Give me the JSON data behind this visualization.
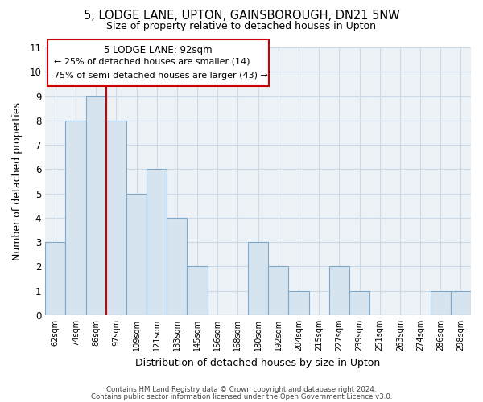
{
  "title_line1": "5, LODGE LANE, UPTON, GAINSBOROUGH, DN21 5NW",
  "title_line2": "Size of property relative to detached houses in Upton",
  "xlabel": "Distribution of detached houses by size in Upton",
  "ylabel": "Number of detached properties",
  "bar_color": "#d6e4f0",
  "bar_edge_color": "#7fa8c9",
  "vline_color": "#cc0000",
  "categories": [
    "62sqm",
    "74sqm",
    "86sqm",
    "97sqm",
    "109sqm",
    "121sqm",
    "133sqm",
    "145sqm",
    "156sqm",
    "168sqm",
    "180sqm",
    "192sqm",
    "204sqm",
    "215sqm",
    "227sqm",
    "239sqm",
    "251sqm",
    "263sqm",
    "274sqm",
    "286sqm",
    "298sqm"
  ],
  "values": [
    3,
    8,
    9,
    8,
    5,
    6,
    4,
    2,
    0,
    0,
    3,
    2,
    1,
    0,
    2,
    1,
    0,
    0,
    0,
    1,
    1
  ],
  "ylim": [
    0,
    11
  ],
  "yticks": [
    0,
    1,
    2,
    3,
    4,
    5,
    6,
    7,
    8,
    9,
    10,
    11
  ],
  "annotation_title": "5 LODGE LANE: 92sqm",
  "annotation_line1": "← 25% of detached houses are smaller (14)",
  "annotation_line2": "75% of semi-detached houses are larger (43) →",
  "footer1": "Contains HM Land Registry data © Crown copyright and database right 2024.",
  "footer2": "Contains public sector information licensed under the Open Government Licence v3.0.",
  "grid_color": "#ccdae8",
  "background_color": "#ffffff",
  "plot_background": "#edf2f7"
}
